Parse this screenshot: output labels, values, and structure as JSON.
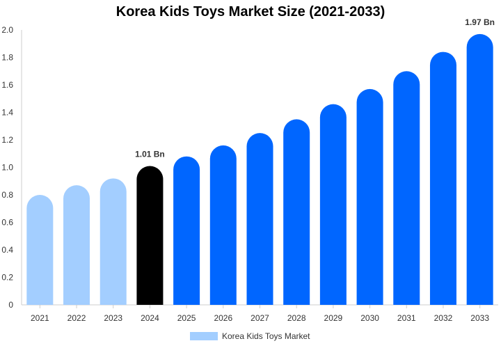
{
  "chart_data": {
    "type": "bar",
    "title": "Korea Kids Toys Market Size (2021-2033)",
    "categories": [
      "2021",
      "2022",
      "2023",
      "2024",
      "2025",
      "2026",
      "2027",
      "2028",
      "2029",
      "2030",
      "2031",
      "2032",
      "2033"
    ],
    "series": [
      {
        "name": "Korea Kids Toys Market",
        "values": [
          0.8,
          0.87,
          0.92,
          1.01,
          1.08,
          1.16,
          1.25,
          1.35,
          1.46,
          1.57,
          1.7,
          1.84,
          1.97
        ]
      }
    ],
    "bar_colors": [
      "#a3ceff",
      "#a3ceff",
      "#a3ceff",
      "#000000",
      "#0066ff",
      "#0066ff",
      "#0066ff",
      "#0066ff",
      "#0066ff",
      "#0066ff",
      "#0066ff",
      "#0066ff",
      "#0066ff"
    ],
    "data_labels": [
      {
        "index": 3,
        "text": "1.01 Bn"
      },
      {
        "index": 12,
        "text": "1.97 Bn"
      }
    ],
    "ylim": [
      0,
      2.0
    ],
    "yticks": [
      0,
      0.2,
      0.4,
      0.6,
      0.8,
      1.0,
      1.2,
      1.4,
      1.6,
      1.8,
      2.0
    ],
    "ytick_labels": [
      "0",
      "0.2",
      "0.4",
      "0.6",
      "0.8",
      "1.0",
      "1.2",
      "1.4",
      "1.6",
      "1.8",
      "2.0"
    ],
    "grid": false,
    "legend": {
      "placement": "bottom-center",
      "label": "Korea Kids Toys Market",
      "color": "#a3ceff"
    }
  }
}
